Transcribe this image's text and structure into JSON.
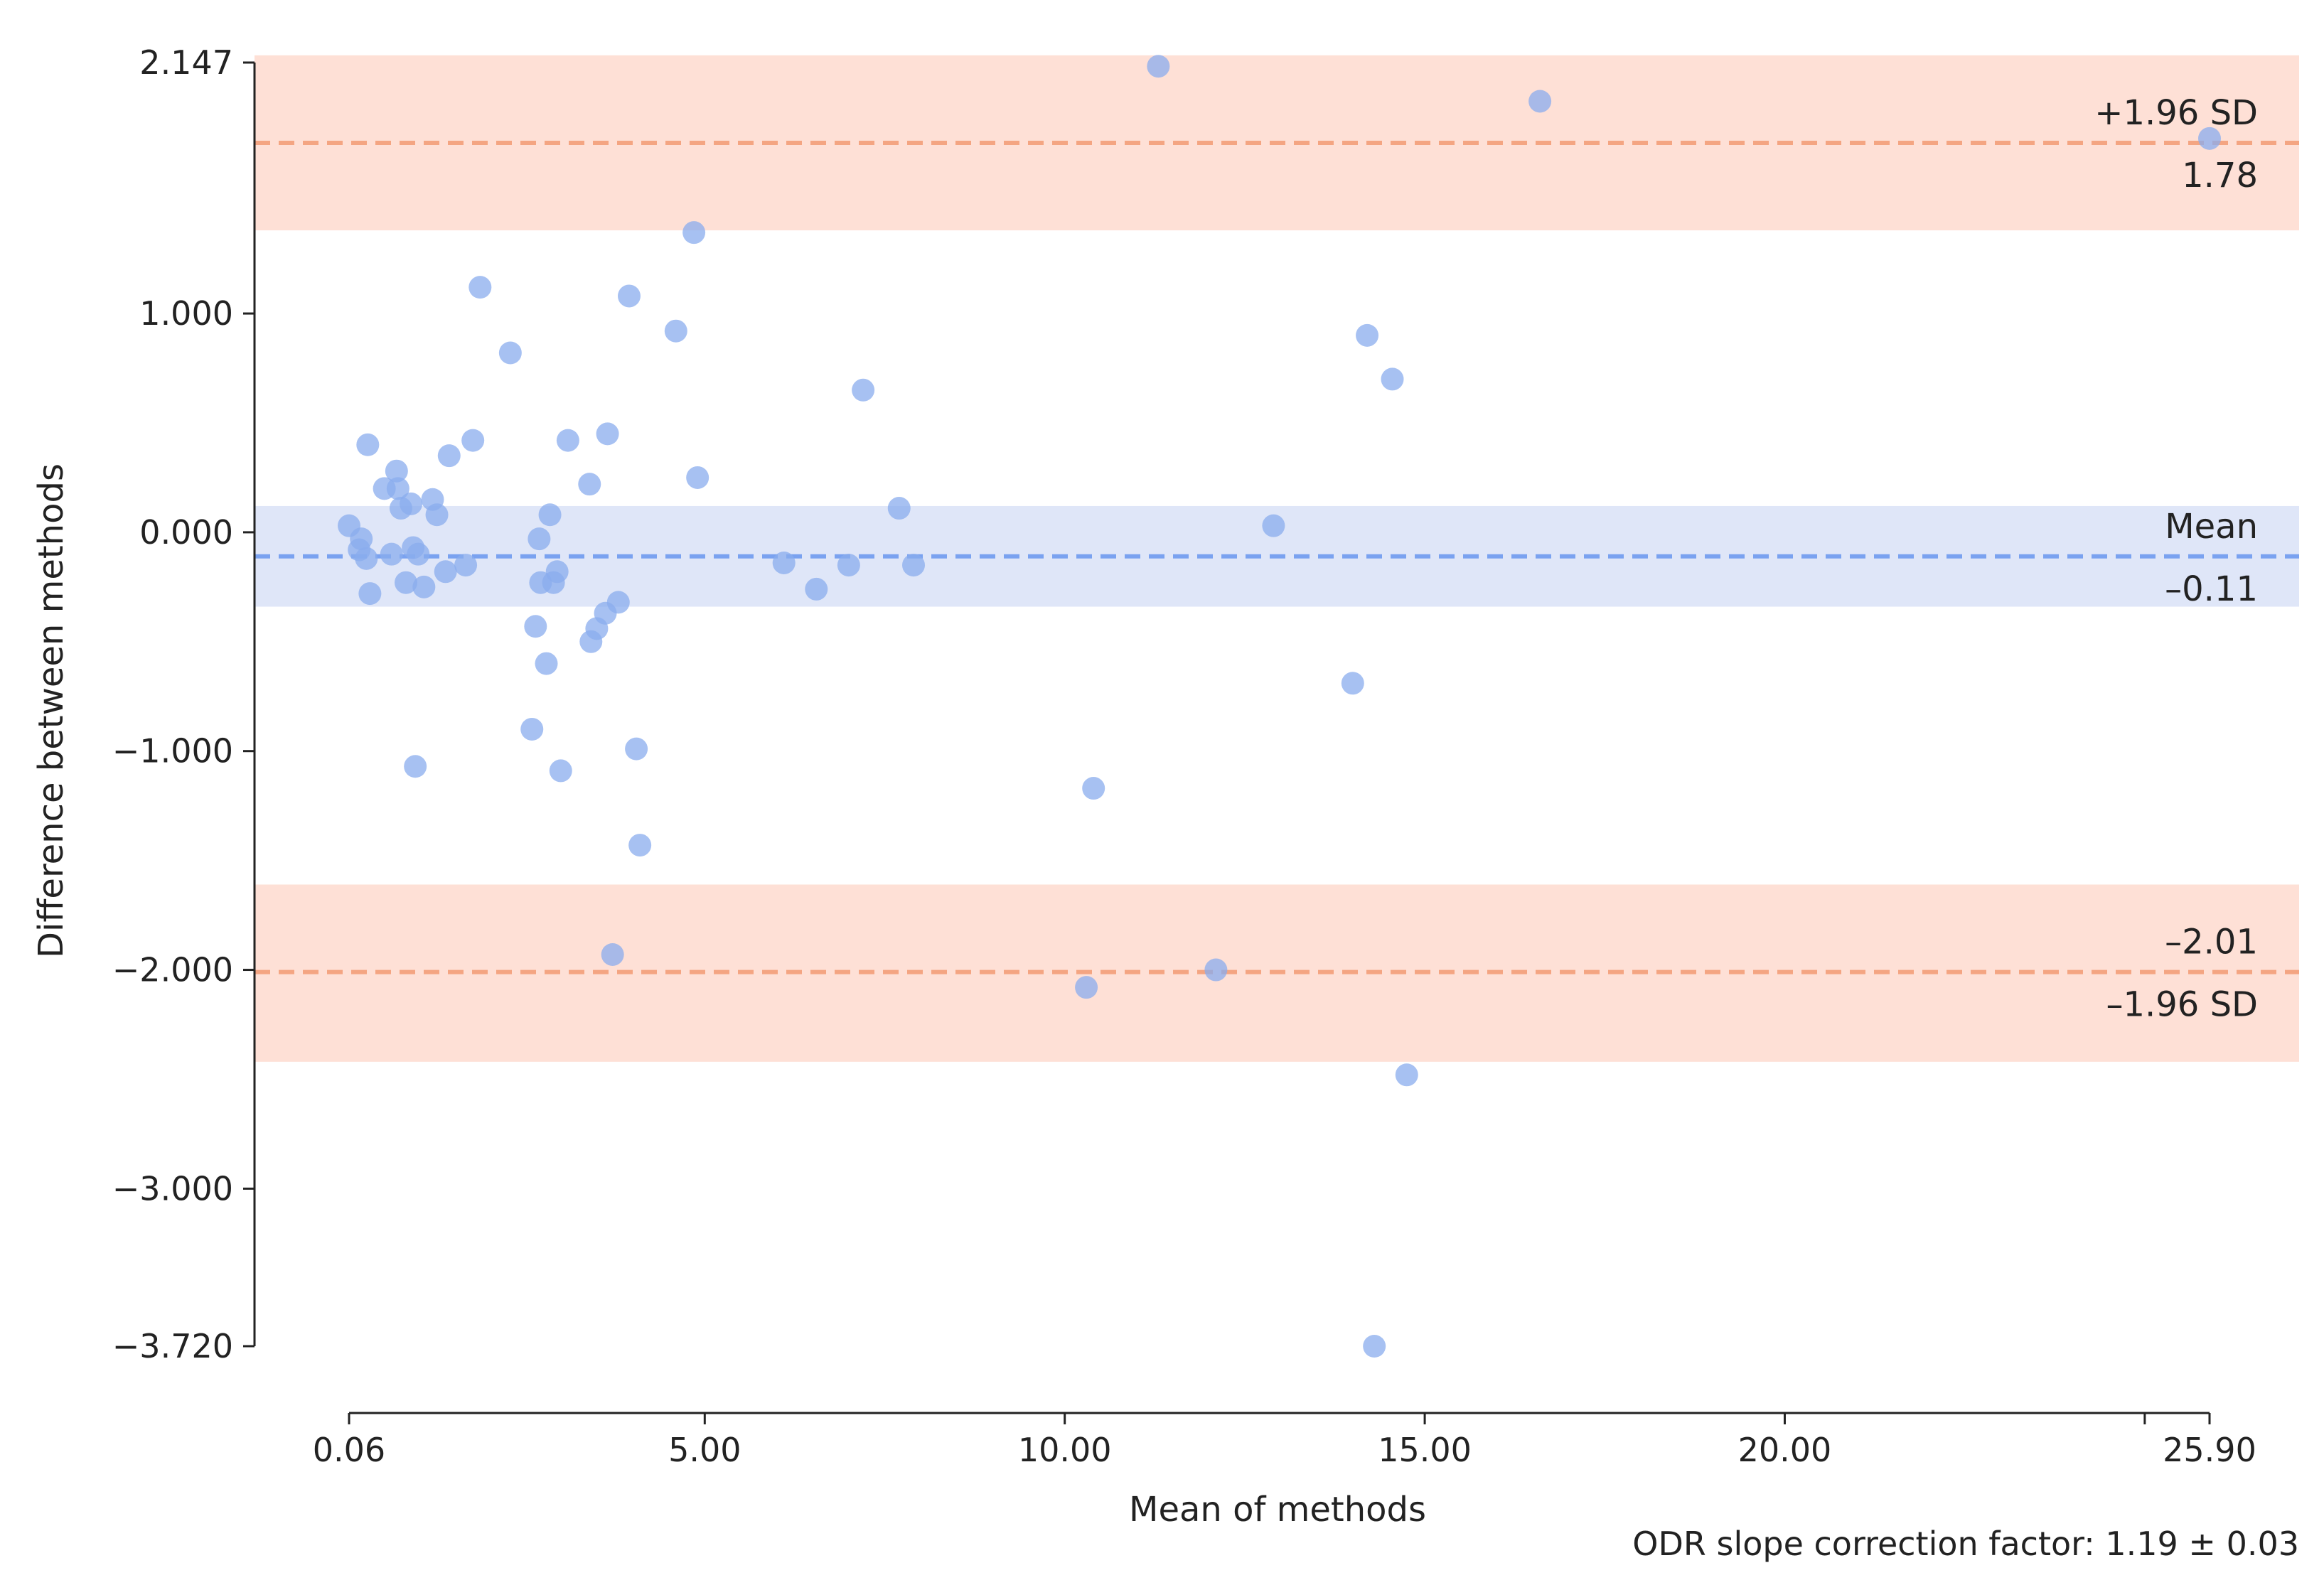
{
  "chart_data": {
    "type": "scatter",
    "title": "",
    "xlabel": "Mean of methods",
    "ylabel": "Difference between methods",
    "xlim": [
      -1.3,
      27.1
    ],
    "ylim": [
      -3.95,
      2.2
    ],
    "x_ticks": [
      {
        "value": 0.06,
        "label": "0.06"
      },
      {
        "value": 5.0,
        "label": "5.00"
      },
      {
        "value": 10.0,
        "label": "10.00"
      },
      {
        "value": 15.0,
        "label": "15.00"
      },
      {
        "value": 20.0,
        "label": "20.00"
      },
      {
        "value": 25.9,
        "label": "25.90"
      }
    ],
    "x_minor_ticks": [
      25.0
    ],
    "y_ticks": [
      {
        "value": 2.147,
        "label": "2.147"
      },
      {
        "value": 1.0,
        "label": "1.000"
      },
      {
        "value": 0.0,
        "label": "0.000"
      },
      {
        "value": -1.0,
        "label": "-1.000"
      },
      {
        "value": -2.0,
        "label": "-2.000"
      },
      {
        "value": -3.0,
        "label": "-3.000"
      },
      {
        "value": -3.72,
        "label": "-3.720"
      }
    ],
    "reference_lines": [
      {
        "name": "upper-loa",
        "value": 1.78,
        "label_top": "+1.96 SD",
        "label_bottom": "1.78",
        "band": [
          1.38,
          2.18
        ],
        "line_color": "#f4a582",
        "band_color": "#fee0d6"
      },
      {
        "name": "mean",
        "value": -0.11,
        "label_top": "Mean",
        "label_bottom": "–0.11",
        "band": [
          -0.34,
          0.12
        ],
        "line_color": "#7aa2f0",
        "band_color": "#dfe6f8"
      },
      {
        "name": "lower-loa",
        "value": -2.01,
        "label_top": "–2.01",
        "label_bottom": "–1.96 SD",
        "band": [
          -2.42,
          -1.61
        ],
        "line_color": "#f4a582",
        "band_color": "#fee0d6"
      }
    ],
    "point_color": "#8aacee",
    "series": [
      {
        "name": "observations",
        "points": [
          [
            0.06,
            0.03
          ],
          [
            0.2,
            -0.08
          ],
          [
            0.23,
            -0.03
          ],
          [
            0.3,
            -0.12
          ],
          [
            0.32,
            0.4
          ],
          [
            0.35,
            -0.28
          ],
          [
            0.55,
            0.2
          ],
          [
            0.65,
            -0.1
          ],
          [
            0.72,
            0.28
          ],
          [
            0.74,
            0.2
          ],
          [
            0.78,
            0.11
          ],
          [
            0.85,
            -0.23
          ],
          [
            0.92,
            0.13
          ],
          [
            0.95,
            -0.07
          ],
          [
            0.98,
            -1.07
          ],
          [
            1.02,
            -0.1
          ],
          [
            1.1,
            -0.25
          ],
          [
            1.22,
            0.15
          ],
          [
            1.28,
            0.08
          ],
          [
            1.4,
            -0.18
          ],
          [
            1.45,
            0.35
          ],
          [
            1.68,
            -0.15
          ],
          [
            1.78,
            0.42
          ],
          [
            1.88,
            1.12
          ],
          [
            2.3,
            0.82
          ],
          [
            2.6,
            -0.9
          ],
          [
            2.65,
            -0.43
          ],
          [
            2.7,
            -0.03
          ],
          [
            2.72,
            -0.23
          ],
          [
            2.8,
            -0.6
          ],
          [
            2.85,
            0.08
          ],
          [
            2.9,
            -0.23
          ],
          [
            2.95,
            -0.18
          ],
          [
            3.0,
            -1.09
          ],
          [
            3.1,
            0.42
          ],
          [
            3.4,
            0.22
          ],
          [
            3.42,
            -0.5
          ],
          [
            3.5,
            -0.44
          ],
          [
            3.62,
            -0.37
          ],
          [
            3.65,
            0.45
          ],
          [
            3.72,
            -1.93
          ],
          [
            3.8,
            -0.32
          ],
          [
            3.95,
            1.08
          ],
          [
            4.05,
            -0.99
          ],
          [
            4.1,
            -1.43
          ],
          [
            4.6,
            0.92
          ],
          [
            4.85,
            1.37
          ],
          [
            4.9,
            0.25
          ],
          [
            6.1,
            -0.14
          ],
          [
            6.55,
            -0.26
          ],
          [
            7.0,
            -0.15
          ],
          [
            7.2,
            0.65
          ],
          [
            7.7,
            0.11
          ],
          [
            7.9,
            -0.15
          ],
          [
            10.3,
            -2.08
          ],
          [
            10.4,
            -1.17
          ],
          [
            11.3,
            2.13
          ],
          [
            12.1,
            -2.0
          ],
          [
            12.9,
            0.03
          ],
          [
            14.0,
            -0.69
          ],
          [
            14.2,
            0.9
          ],
          [
            14.3,
            -3.72
          ],
          [
            14.55,
            0.7
          ],
          [
            14.75,
            -2.48
          ],
          [
            16.6,
            1.97
          ],
          [
            25.9,
            1.8
          ]
        ]
      }
    ]
  },
  "footnote": "ODR slope correction factor: 1.19 ± 0.03"
}
